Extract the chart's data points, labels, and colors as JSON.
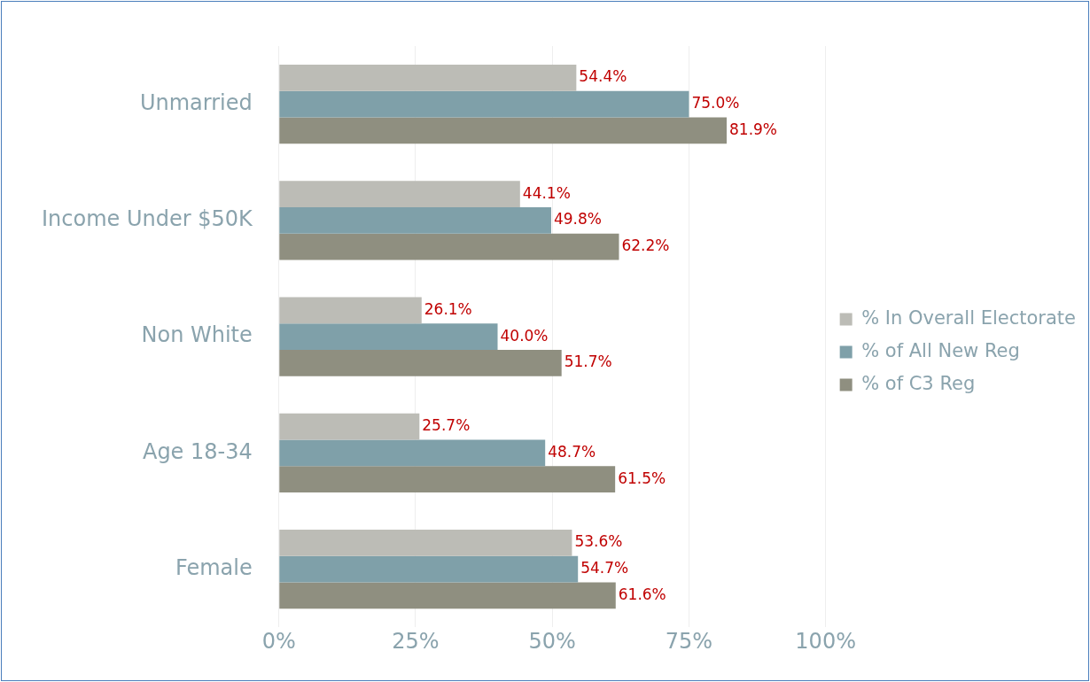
{
  "chart_data": {
    "type": "bar",
    "orientation": "horizontal",
    "categories": [
      "Unmarried",
      "Income Under $50K",
      "Non White",
      "Age 18-34",
      "Female"
    ],
    "series": [
      {
        "name": "% In Overall Electorate",
        "color": "#bcbcb6",
        "values": [
          54.4,
          44.1,
          26.1,
          25.7,
          53.6
        ],
        "value_labels": [
          "54.4%",
          "44.1%",
          "26.1%",
          "25.7%",
          "53.6%"
        ]
      },
      {
        "name": "% of All New Reg",
        "color": "#7fa0a9",
        "values": [
          75.0,
          49.8,
          40.0,
          48.7,
          54.7
        ],
        "value_labels": [
          "75.0%",
          "49.8%",
          "40.0%",
          "48.7%",
          "54.7%"
        ]
      },
      {
        "name": "% of C3 Reg",
        "color": "#8f8f80",
        "values": [
          81.9,
          62.2,
          51.7,
          61.5,
          61.6
        ],
        "value_labels": [
          "81.9%",
          "62.2%",
          "51.7%",
          "61.5%",
          "61.6%"
        ]
      }
    ],
    "xlim": [
      0,
      100
    ],
    "xticks": [
      {
        "value": 0,
        "label": "0%"
      },
      {
        "value": 25,
        "label": "25%"
      },
      {
        "value": 50,
        "label": "50%"
      },
      {
        "value": 75,
        "label": "75%"
      },
      {
        "value": 100,
        "label": "100%"
      }
    ],
    "grid": "x",
    "legend": "right"
  }
}
